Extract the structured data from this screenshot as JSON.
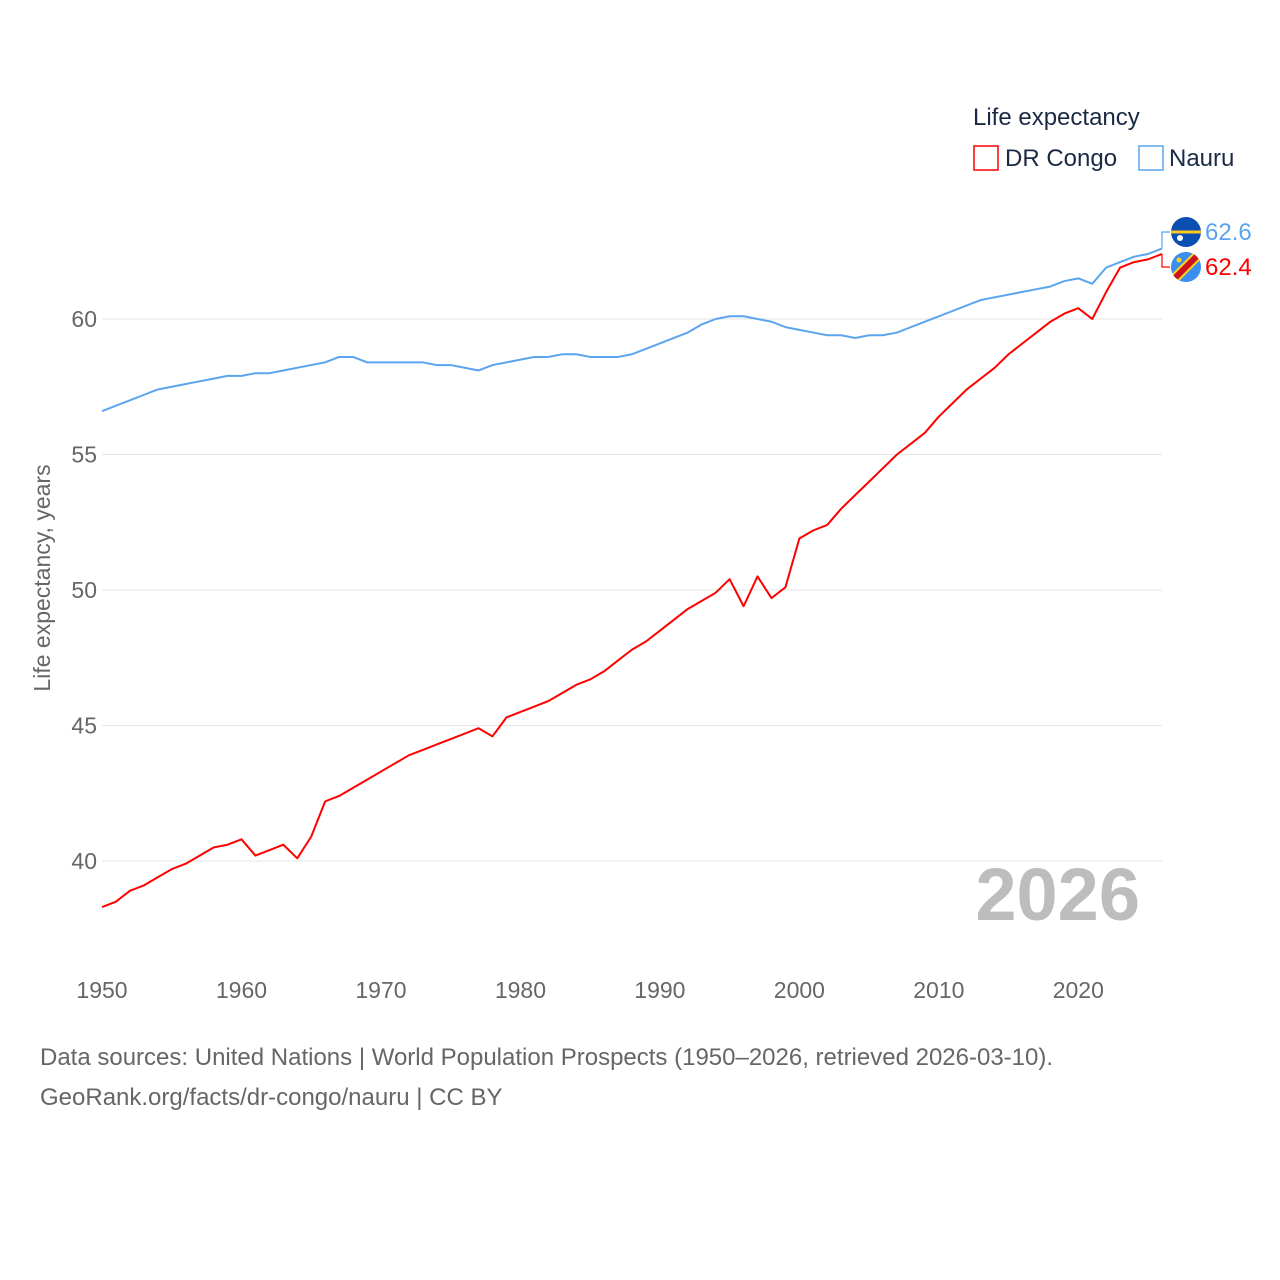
{
  "chart_data": {
    "type": "line",
    "legend_title": "Life expectancy",
    "legend_position": "top-right",
    "ylabel": "Life expectancy, years",
    "xlabel": "",
    "xlim": [
      1950,
      2026
    ],
    "ylim": [
      38.3,
      62.6
    ],
    "grid": true,
    "yticks": [
      40,
      45,
      50,
      55,
      60
    ],
    "xticks": [
      1950,
      1960,
      1970,
      1980,
      1990,
      2000,
      2010,
      2020
    ],
    "year_watermark": "2026",
    "x": [
      1950,
      1951,
      1952,
      1953,
      1954,
      1955,
      1956,
      1957,
      1958,
      1959,
      1960,
      1961,
      1962,
      1963,
      1964,
      1965,
      1966,
      1967,
      1968,
      1969,
      1970,
      1971,
      1972,
      1973,
      1974,
      1975,
      1976,
      1977,
      1978,
      1979,
      1980,
      1981,
      1982,
      1983,
      1984,
      1985,
      1986,
      1987,
      1988,
      1989,
      1990,
      1991,
      1992,
      1993,
      1994,
      1995,
      1996,
      1997,
      1998,
      1999,
      2000,
      2001,
      2002,
      2003,
      2004,
      2005,
      2006,
      2007,
      2008,
      2009,
      2010,
      2011,
      2012,
      2013,
      2014,
      2015,
      2016,
      2017,
      2018,
      2019,
      2020,
      2021,
      2022,
      2023,
      2024,
      2025,
      2026
    ],
    "series": [
      {
        "name": "DR Congo",
        "color": "#ff0000",
        "end_label": "62.4",
        "flag": "dr-congo",
        "values": [
          38.3,
          38.5,
          38.9,
          39.1,
          39.4,
          39.7,
          39.9,
          40.2,
          40.5,
          40.6,
          40.8,
          40.2,
          40.4,
          40.6,
          40.1,
          40.9,
          42.2,
          42.4,
          42.7,
          43.0,
          43.3,
          43.6,
          43.9,
          44.1,
          44.3,
          44.5,
          44.7,
          44.9,
          44.6,
          45.3,
          45.5,
          45.7,
          45.9,
          46.2,
          46.5,
          46.7,
          47.0,
          47.4,
          47.8,
          48.1,
          48.5,
          48.9,
          49.3,
          49.6,
          49.9,
          50.4,
          49.4,
          50.5,
          49.7,
          50.1,
          51.9,
          52.2,
          52.4,
          53.0,
          53.5,
          54.0,
          54.5,
          55.0,
          55.4,
          55.8,
          56.4,
          56.9,
          57.4,
          57.8,
          58.2,
          58.7,
          59.1,
          59.5,
          59.9,
          60.2,
          60.4,
          60.0,
          61.0,
          61.9,
          62.1,
          62.2,
          62.4
        ]
      },
      {
        "name": "Nauru",
        "color": "#5ba4ee",
        "end_label": "62.6",
        "flag": "nauru",
        "values": [
          56.6,
          56.8,
          57.0,
          57.2,
          57.4,
          57.5,
          57.6,
          57.7,
          57.8,
          57.9,
          57.9,
          58.0,
          58.0,
          58.1,
          58.2,
          58.3,
          58.4,
          58.6,
          58.6,
          58.4,
          58.4,
          58.4,
          58.4,
          58.4,
          58.3,
          58.3,
          58.2,
          58.1,
          58.3,
          58.4,
          58.5,
          58.6,
          58.6,
          58.7,
          58.7,
          58.6,
          58.6,
          58.6,
          58.7,
          58.9,
          59.1,
          59.3,
          59.5,
          59.8,
          60.0,
          60.1,
          60.1,
          60.0,
          59.9,
          59.7,
          59.6,
          59.5,
          59.4,
          59.4,
          59.3,
          59.4,
          59.4,
          59.5,
          59.7,
          59.9,
          60.1,
          60.3,
          60.5,
          60.7,
          60.8,
          60.9,
          61.0,
          61.1,
          61.2,
          61.4,
          61.5,
          61.3,
          61.9,
          62.1,
          62.3,
          62.4,
          62.6
        ]
      }
    ]
  },
  "footer": {
    "line1": "Data sources: United Nations | World Population Prospects (1950–2026, retrieved 2026-03-10).",
    "line2": "GeoRank.org/facts/dr-congo/nauru | CC BY"
  }
}
